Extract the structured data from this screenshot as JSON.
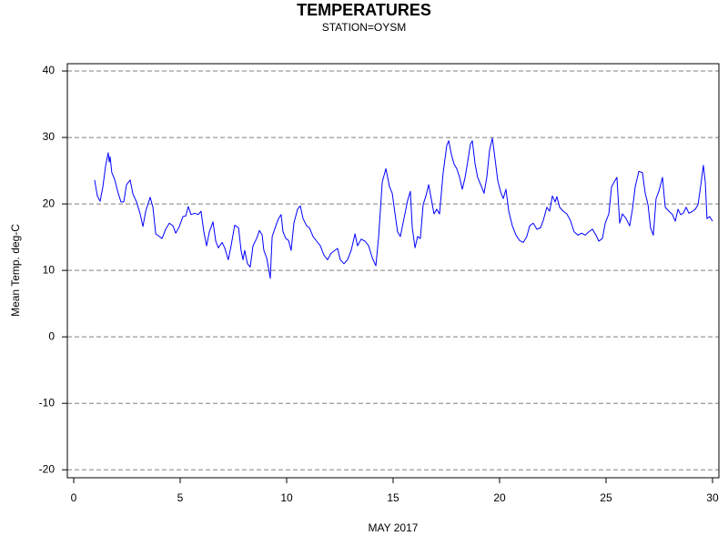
{
  "chart_data": {
    "type": "line",
    "title": "TEMPERATURES",
    "subtitle": "STATION=OYSM",
    "y_label": "Mean Temp. deg-C",
    "x_label": "MAY 2017",
    "color": "#0000ff",
    "grid": true,
    "xlim": [
      -0.3,
      30.3
    ],
    "ylim": [
      -21.2,
      41.1
    ],
    "xticks": [
      0,
      5,
      10,
      15,
      20,
      25,
      30
    ],
    "yticks": [
      -20,
      -10,
      0,
      10,
      20,
      30,
      40
    ],
    "x": [
      0.98,
      1.11,
      1.24,
      1.37,
      1.5,
      1.62,
      1.67,
      1.71,
      1.79,
      1.92,
      2.09,
      2.22,
      2.35,
      2.48,
      2.65,
      2.78,
      2.95,
      3.12,
      3.25,
      3.38,
      3.59,
      3.72,
      3.85,
      4.02,
      4.15,
      4.32,
      4.49,
      4.66,
      4.79,
      4.96,
      5.13,
      5.26,
      5.38,
      5.51,
      5.68,
      5.85,
      5.98,
      6.11,
      6.24,
      6.37,
      6.54,
      6.67,
      6.79,
      6.97,
      7.09,
      7.26,
      7.39,
      7.56,
      7.74,
      7.86,
      7.95,
      8.03,
      8.16,
      8.29,
      8.42,
      8.59,
      8.72,
      8.85,
      8.93,
      9.06,
      9.19,
      9.23,
      9.32,
      9.49,
      9.62,
      9.74,
      9.83,
      9.96,
      10.09,
      10.21,
      10.34,
      10.51,
      10.64,
      10.77,
      10.94,
      11.07,
      11.24,
      11.41,
      11.58,
      11.75,
      11.92,
      12.09,
      12.26,
      12.39,
      12.52,
      12.69,
      12.86,
      13.03,
      13.21,
      13.33,
      13.5,
      13.68,
      13.85,
      14.02,
      14.19,
      14.32,
      14.49,
      14.66,
      14.83,
      14.96,
      15.09,
      15.21,
      15.34,
      15.51,
      15.68,
      15.81,
      15.9,
      16.03,
      16.15,
      16.28,
      16.41,
      16.54,
      16.67,
      16.79,
      16.92,
      17.05,
      17.18,
      17.35,
      17.52,
      17.61,
      17.74,
      17.86,
      17.99,
      18.12,
      18.25,
      18.38,
      18.5,
      18.63,
      18.72,
      18.85,
      18.97,
      19.15,
      19.27,
      19.4,
      19.53,
      19.66,
      19.79,
      19.91,
      20.04,
      20.17,
      20.3,
      20.43,
      20.6,
      20.77,
      20.94,
      21.11,
      21.28,
      21.41,
      21.58,
      21.75,
      21.92,
      22.05,
      22.22,
      22.35,
      22.48,
      22.61,
      22.69,
      22.82,
      22.99,
      23.16,
      23.33,
      23.5,
      23.68,
      23.85,
      24.02,
      24.19,
      24.36,
      24.53,
      24.66,
      24.83,
      24.96,
      25.13,
      25.26,
      25.38,
      25.51,
      25.64,
      25.77,
      25.94,
      26.11,
      26.24,
      26.37,
      26.54,
      26.71,
      26.84,
      26.97,
      27.09,
      27.22,
      27.35,
      27.48,
      27.65,
      27.78,
      27.95,
      28.12,
      28.25,
      28.38,
      28.5,
      28.63,
      28.76,
      28.89,
      29.02,
      29.19,
      29.32,
      29.44,
      29.57,
      29.66,
      29.74,
      29.87,
      30.0
    ],
    "values": [
      23.6,
      21.2,
      20.4,
      22.6,
      25.8,
      27.7,
      26.3,
      27.1,
      24.7,
      23.7,
      21.6,
      20.3,
      20.3,
      22.9,
      23.6,
      21.5,
      20.3,
      18.5,
      16.6,
      18.9,
      21.0,
      19.5,
      15.5,
      15.1,
      14.8,
      16.2,
      17.1,
      16.7,
      15.6,
      16.6,
      18.1,
      18.2,
      19.6,
      18.4,
      18.6,
      18.4,
      18.9,
      15.8,
      13.7,
      15.8,
      17.3,
      14.4,
      13.4,
      14.2,
      13.4,
      11.6,
      13.7,
      16.8,
      16.4,
      13.0,
      11.6,
      13.0,
      11.0,
      10.5,
      13.7,
      14.8,
      16.0,
      15.3,
      13.0,
      11.9,
      9.6,
      8.8,
      15.1,
      16.7,
      17.8,
      18.4,
      15.8,
      14.8,
      14.5,
      13.0,
      17.1,
      19.2,
      19.7,
      17.8,
      16.7,
      16.4,
      15.1,
      14.4,
      13.7,
      12.3,
      11.6,
      12.6,
      13.0,
      13.3,
      11.6,
      11.0,
      11.6,
      13.0,
      15.5,
      13.7,
      14.7,
      14.4,
      13.7,
      11.9,
      10.7,
      15.1,
      23.3,
      25.3,
      22.6,
      21.6,
      18.5,
      15.8,
      15.1,
      17.8,
      20.5,
      21.9,
      16.4,
      13.4,
      15.1,
      14.8,
      19.9,
      21.2,
      22.9,
      20.8,
      18.5,
      19.2,
      18.5,
      24.7,
      28.8,
      29.5,
      27.4,
      26.0,
      25.3,
      24.0,
      22.2,
      24.0,
      26.3,
      29.0,
      29.5,
      26.0,
      24.0,
      22.6,
      21.6,
      24.0,
      28.1,
      29.9,
      26.7,
      23.6,
      21.9,
      20.8,
      22.2,
      18.9,
      16.7,
      15.3,
      14.5,
      14.2,
      15.1,
      16.7,
      17.1,
      16.2,
      16.4,
      17.5,
      19.5,
      18.9,
      21.2,
      20.3,
      21.1,
      19.5,
      18.9,
      18.5,
      17.5,
      15.8,
      15.3,
      15.6,
      15.3,
      15.8,
      16.2,
      15.3,
      14.4,
      14.8,
      17.1,
      18.5,
      22.6,
      23.3,
      24.0,
      17.1,
      18.5,
      17.8,
      16.7,
      19.2,
      22.6,
      24.9,
      24.7,
      21.6,
      19.9,
      16.4,
      15.3,
      20.8,
      21.9,
      24.0,
      19.5,
      18.9,
      18.4,
      17.4,
      19.2,
      18.4,
      18.6,
      19.5,
      18.6,
      18.8,
      19.2,
      19.9,
      22.6,
      25.8,
      23.3,
      17.8,
      18.1,
      17.4
    ]
  }
}
